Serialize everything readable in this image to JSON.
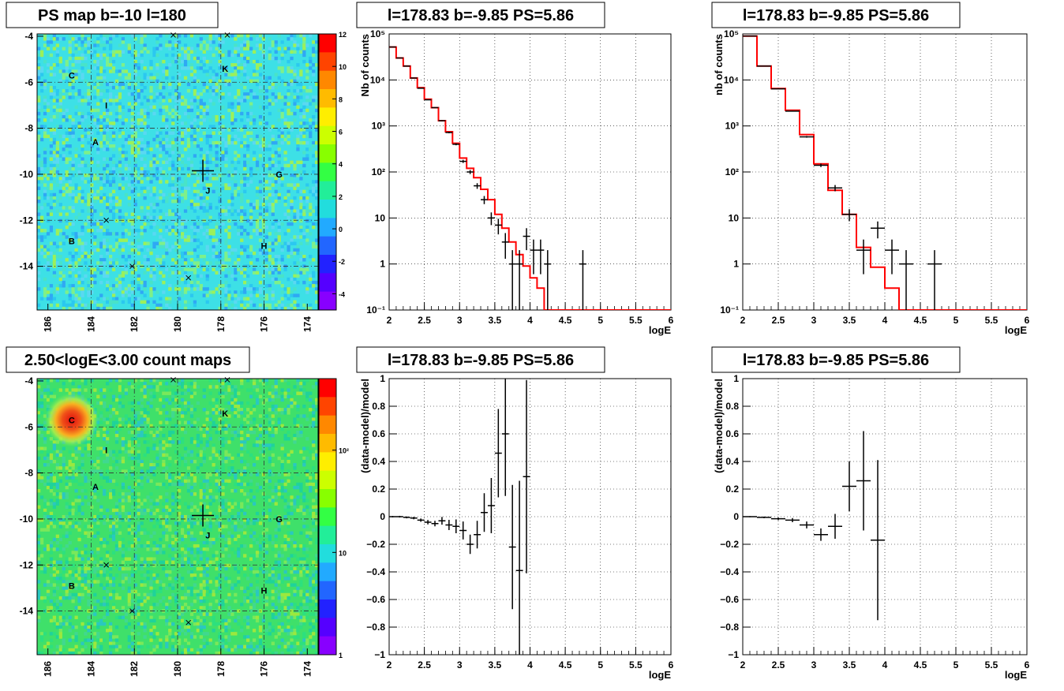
{
  "maps": [
    {
      "title": "PS map b=-10 l=180",
      "x_ticks": [
        "186",
        "184",
        "182",
        "180",
        "178",
        "176",
        "174"
      ],
      "x_tick_values": [
        186,
        184,
        182,
        180,
        178,
        176,
        174
      ],
      "y_ticks": [
        "-4",
        "-6",
        "-8",
        "-10",
        "-12",
        "-14"
      ],
      "y_tick_values": [
        -4,
        -6,
        -8,
        -10,
        -12,
        -14
      ],
      "xlim": [
        186.5,
        173.5
      ],
      "ylim": [
        -15.9,
        -3.9
      ],
      "color_scale": "linear",
      "z_ticks": [
        "12",
        "10",
        "8",
        "6",
        "4",
        "2",
        "0",
        "-2",
        "-4"
      ],
      "z_tick_values": [
        12,
        10,
        8,
        6,
        4,
        2,
        0,
        -2,
        -4
      ],
      "zlim": [
        -5,
        12
      ],
      "background_color": "#3de0e6",
      "source_blob": null
    },
    {
      "title": "2.50<logE<3.00 count maps",
      "x_ticks": [
        "186",
        "184",
        "182",
        "180",
        "178",
        "176",
        "174"
      ],
      "x_tick_values": [
        186,
        184,
        182,
        180,
        178,
        176,
        174
      ],
      "y_ticks": [
        "-4",
        "-6",
        "-8",
        "-10",
        "-12",
        "-14"
      ],
      "y_tick_values": [
        -4,
        -6,
        -8,
        -10,
        -12,
        -14
      ],
      "xlim": [
        186.5,
        173.5
      ],
      "ylim": [
        -15.9,
        -3.9
      ],
      "color_scale": "log",
      "z_ticks": [
        "10²",
        "10",
        "1"
      ],
      "z_tick_values": [
        100,
        10,
        1
      ],
      "zlim": [
        1,
        500
      ],
      "background_color": "#3fe06a",
      "source_blob": {
        "l": 184.9,
        "b": -5.7
      }
    }
  ],
  "sources": [
    {
      "label": "C",
      "l": 184.9,
      "b": -5.7
    },
    {
      "label": "I",
      "l": 183.3,
      "b": -7.0
    },
    {
      "label": "A",
      "l": 183.8,
      "b": -8.6
    },
    {
      "label": "K",
      "l": 177.8,
      "b": -5.4
    },
    {
      "label": "G",
      "l": 175.3,
      "b": -10.0
    },
    {
      "label": "J",
      "l": 178.6,
      "b": -10.7
    },
    {
      "label": "B",
      "l": 184.9,
      "b": -12.9
    },
    {
      "label": "H",
      "l": 176.0,
      "b": -13.1
    }
  ],
  "markers": [
    {
      "l": 180.2,
      "b": -3.95
    },
    {
      "l": 177.7,
      "b": -3.95
    },
    {
      "l": 183.3,
      "b": -12.0
    },
    {
      "l": 182.1,
      "b": -14.0
    },
    {
      "l": 179.5,
      "b": -14.5
    }
  ],
  "target": {
    "l": 178.83,
    "b": -9.85
  },
  "chart_data": [
    {
      "type": "line",
      "panel": "spectrum-fine",
      "title": "l=178.83 b=-9.85 PS=5.86",
      "xlabel": "logE",
      "ylabel": "Nb of counts",
      "xlim": [
        2,
        6
      ],
      "ylim": [
        0.1,
        100000
      ],
      "yscale": "log",
      "x_ticks": [
        "2",
        "2.5",
        "3",
        "3.5",
        "4",
        "4.5",
        "5",
        "5.5",
        "6"
      ],
      "x_tick_values": [
        2,
        2.5,
        3,
        3.5,
        4,
        4.5,
        5,
        5.5,
        6
      ],
      "y_ticks": [
        "10⁻¹",
        "1",
        "10",
        "10²",
        "10³",
        "10⁴",
        "10⁵"
      ],
      "y_tick_values": [
        0.1,
        1,
        10,
        100,
        1000,
        10000,
        100000
      ],
      "grid": true,
      "bin_width": 0.1,
      "model": {
        "x": [
          2.05,
          2.15,
          2.25,
          2.35,
          2.45,
          2.55,
          2.65,
          2.75,
          2.85,
          2.95,
          3.05,
          3.15,
          3.25,
          3.35,
          3.45,
          3.55,
          3.65,
          3.75,
          3.85,
          3.95,
          4.05,
          4.15,
          4.25,
          4.35,
          4.45,
          4.55,
          4.65,
          4.75,
          4.85,
          4.95,
          5.05,
          5.15,
          5.25,
          5.35,
          5.45,
          5.55,
          5.65,
          5.75,
          5.85,
          5.95
        ],
        "y": [
          52000,
          30000,
          20000,
          11000,
          6800,
          3800,
          2500,
          1300,
          750,
          420,
          200,
          120,
          75,
          42,
          25,
          12,
          6,
          3,
          1.6,
          0.9,
          0.5,
          0.3,
          0.1,
          0.1,
          0.1,
          0.1,
          0.1,
          0.1,
          0.1,
          0.1,
          0.1,
          0.1,
          0.1,
          0.1,
          0.1,
          0.1,
          0.1,
          0.1,
          0.1,
          0.1
        ]
      },
      "data": {
        "x": [
          2.05,
          2.15,
          2.25,
          2.35,
          2.45,
          2.55,
          2.65,
          2.75,
          2.85,
          2.95,
          3.05,
          3.15,
          3.25,
          3.35,
          3.45,
          3.55,
          3.65,
          3.75,
          3.85,
          3.95,
          4.05,
          4.15,
          4.25,
          4.75
        ],
        "y": [
          52000,
          30000,
          20000,
          11000,
          6600,
          3700,
          2500,
          1300,
          720,
          400,
          170,
          100,
          50,
          25,
          10,
          7,
          3,
          1,
          1,
          4,
          2,
          2,
          1,
          1
        ],
        "err_lo": [
          230,
          170,
          140,
          105,
          80,
          60,
          50,
          36,
          27,
          20,
          13,
          10,
          7,
          5,
          3,
          2.6,
          1.7,
          1,
          1,
          2,
          1.4,
          1.4,
          1,
          1
        ],
        "err_hi": [
          230,
          170,
          140,
          105,
          80,
          60,
          50,
          36,
          27,
          20,
          13,
          10,
          7,
          5,
          3.2,
          2.6,
          1.7,
          1,
          1,
          2,
          1.4,
          1.4,
          1,
          1
        ]
      }
    },
    {
      "type": "line",
      "panel": "spectrum-coarse",
      "title": "l=178.83 b=-9.85 PS=5.86",
      "xlabel": "logE",
      "ylabel": "nb of counts",
      "xlim": [
        2,
        6
      ],
      "ylim": [
        0.1,
        100000
      ],
      "yscale": "log",
      "x_ticks": [
        "2",
        "2.5",
        "3",
        "3.5",
        "4",
        "4.5",
        "5",
        "5.5",
        "6"
      ],
      "x_tick_values": [
        2,
        2.5,
        3,
        3.5,
        4,
        4.5,
        5,
        5.5,
        6
      ],
      "y_ticks": [
        "10⁻¹",
        "1",
        "10",
        "10²",
        "10³",
        "10⁴",
        "10⁵"
      ],
      "y_tick_values": [
        0.1,
        1,
        10,
        100,
        1000,
        10000,
        100000
      ],
      "grid": true,
      "bin_width": 0.2,
      "model": {
        "x": [
          2.1,
          2.3,
          2.5,
          2.7,
          2.9,
          3.1,
          3.3,
          3.5,
          3.7,
          3.9,
          4.1,
          4.3,
          4.5,
          4.7,
          4.9,
          5.1,
          5.3,
          5.5,
          5.7,
          5.9
        ],
        "y": [
          90000,
          20000,
          6500,
          2200,
          650,
          150,
          40,
          12,
          2.3,
          0.85,
          0.3,
          0.1,
          0.1,
          0.1,
          0.1,
          0.1,
          0.1,
          0.1,
          0.1,
          0.1
        ]
      },
      "data": {
        "x": [
          2.1,
          2.3,
          2.5,
          2.7,
          2.9,
          3.1,
          3.3,
          3.5,
          3.7,
          3.9,
          4.1,
          4.3,
          4.7
        ],
        "y": [
          90000,
          20000,
          6400,
          2100,
          580,
          140,
          45,
          12,
          2,
          6,
          2,
          1,
          1
        ],
        "err_lo": [
          300,
          140,
          80,
          46,
          24,
          12,
          7,
          3.5,
          1.4,
          2.4,
          1.4,
          1,
          1
        ],
        "err_hi": [
          300,
          140,
          80,
          46,
          24,
          12,
          7,
          3.5,
          1.4,
          2.4,
          1.4,
          1,
          1
        ]
      }
    },
    {
      "type": "scatter",
      "panel": "residual-fine",
      "title": "l=178.83 b=-9.85 PS=5.86",
      "xlabel": "logE",
      "ylabel": "(data-model)/model",
      "xlim": [
        2,
        6
      ],
      "ylim": [
        -1,
        1
      ],
      "x_ticks": [
        "2",
        "2.5",
        "3",
        "3.5",
        "4",
        "4.5",
        "5",
        "5.5",
        "6"
      ],
      "x_tick_values": [
        2,
        2.5,
        3,
        3.5,
        4,
        4.5,
        5,
        5.5,
        6
      ],
      "y_ticks": [
        "1",
        "0.8",
        "0.6",
        "0.4",
        "0.2",
        "0",
        "−0.2",
        "−0.4",
        "−0.6",
        "−0.8",
        "−1"
      ],
      "y_tick_values": [
        1,
        0.8,
        0.6,
        0.4,
        0.2,
        0,
        -0.2,
        -0.4,
        -0.6,
        -0.8,
        -1
      ],
      "grid": true,
      "bin_width": 0.1,
      "points": {
        "x": [
          2.05,
          2.15,
          2.25,
          2.35,
          2.45,
          2.55,
          2.65,
          2.75,
          2.85,
          2.95,
          3.05,
          3.15,
          3.25,
          3.35,
          3.45,
          3.55,
          3.65,
          3.75,
          3.85,
          3.95
        ],
        "y": [
          0.0,
          0.0,
          -0.005,
          -0.01,
          -0.025,
          -0.04,
          -0.05,
          -0.03,
          -0.06,
          -0.07,
          -0.1,
          -0.2,
          -0.13,
          0.03,
          0.08,
          0.46,
          0.6,
          -0.22,
          -0.39,
          0.29
        ],
        "err": [
          0.005,
          0.006,
          0.007,
          0.009,
          0.012,
          0.016,
          0.02,
          0.028,
          0.037,
          0.05,
          0.065,
          0.07,
          0.1,
          0.14,
          0.2,
          0.32,
          0.45,
          0.45,
          0.65,
          0.7
        ]
      }
    },
    {
      "type": "scatter",
      "panel": "residual-coarse",
      "title": "l=178.83 b=-9.85 PS=5.86",
      "xlabel": "logE",
      "ylabel": "(data-model)/model",
      "xlim": [
        2,
        6
      ],
      "ylim": [
        -1,
        1
      ],
      "x_ticks": [
        "2",
        "2.5",
        "3",
        "3.5",
        "4",
        "4.5",
        "5",
        "5.5",
        "6"
      ],
      "x_tick_values": [
        2,
        2.5,
        3,
        3.5,
        4,
        4.5,
        5,
        5.5,
        6
      ],
      "y_ticks": [
        "1",
        "0.8",
        "0.6",
        "0.4",
        "0.2",
        "0",
        "−0.2",
        "−0.4",
        "−0.6",
        "−0.8",
        "−1"
      ],
      "y_tick_values": [
        1,
        0.8,
        0.6,
        0.4,
        0.2,
        0,
        -0.2,
        -0.4,
        -0.6,
        -0.8,
        -1
      ],
      "grid": true,
      "bin_width": 0.2,
      "points": {
        "x": [
          2.1,
          2.3,
          2.5,
          2.7,
          2.9,
          3.1,
          3.3,
          3.5,
          3.7,
          3.9
        ],
        "y": [
          0.0,
          -0.005,
          -0.015,
          -0.025,
          -0.06,
          -0.13,
          -0.07,
          0.22,
          0.26,
          -0.17
        ],
        "err": [
          0.004,
          0.006,
          0.01,
          0.015,
          0.025,
          0.045,
          0.09,
          0.18,
          0.36,
          0.58
        ]
      }
    }
  ]
}
